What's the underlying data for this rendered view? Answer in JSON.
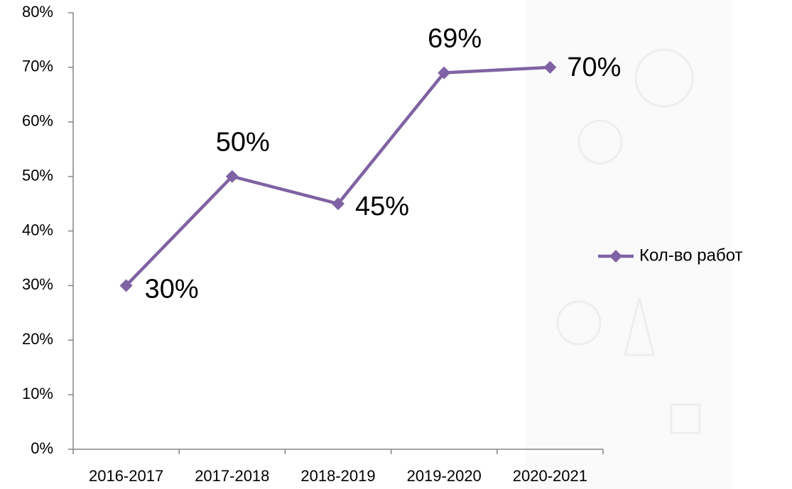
{
  "chart_data": {
    "type": "line",
    "categories": [
      "2016-2017",
      "2017-2018",
      "2018-2019",
      "2019-2020",
      "2020-2021"
    ],
    "series": [
      {
        "name": "Кол-во работ",
        "color": "#7f62a3",
        "values": [
          30,
          50,
          45,
          69,
          70
        ],
        "value_labels": [
          "30%",
          "50%",
          "45%",
          "69%",
          "70%"
        ]
      }
    ],
    "ylim": [
      0,
      80
    ],
    "yticks": [
      {
        "value": 0,
        "label": "0%"
      },
      {
        "value": 10,
        "label": "10%"
      },
      {
        "value": 20,
        "label": "20%"
      },
      {
        "value": 30,
        "label": "30%"
      },
      {
        "value": 40,
        "label": "40%"
      },
      {
        "value": 50,
        "label": "50%"
      },
      {
        "value": 60,
        "label": "60%"
      },
      {
        "value": 70,
        "label": "70%"
      },
      {
        "value": 80,
        "label": "80%"
      }
    ],
    "legend": "right"
  }
}
